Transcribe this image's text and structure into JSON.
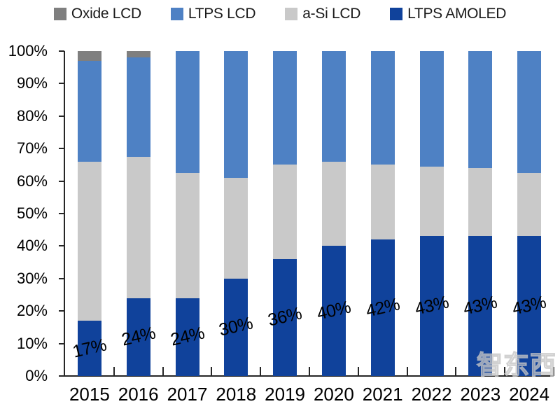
{
  "legend": {
    "items": [
      {
        "label": "Oxide LCD",
        "color": "#7f7f7f"
      },
      {
        "label": "LTPS LCD",
        "color": "#4e81c4"
      },
      {
        "label": "a-Si LCD",
        "color": "#c9c9c9"
      },
      {
        "label": "LTPS AMOLED",
        "color": "#10429b"
      }
    ]
  },
  "chart_data": {
    "type": "bar",
    "subtype": "stacked-100-percent-column",
    "title": "",
    "xlabel": "",
    "ylabel": "",
    "categories": [
      "2015",
      "2016",
      "2017",
      "2018",
      "2019",
      "2020",
      "2021",
      "2022",
      "2023",
      "2024"
    ],
    "series": [
      {
        "name": "LTPS AMOLED",
        "color": "#10429b",
        "values": [
          17,
          24,
          24,
          30,
          36,
          40,
          42,
          43,
          43,
          43
        ],
        "labels": [
          "17%",
          "24%",
          "24%",
          "30%",
          "36%",
          "40%",
          "42%",
          "43%",
          "43%",
          "43%"
        ]
      },
      {
        "name": "a-Si LCD",
        "color": "#c9c9c9",
        "values": [
          49,
          43.5,
          38.5,
          31,
          29,
          26,
          23,
          21.5,
          21,
          19.5
        ]
      },
      {
        "name": "LTPS LCD",
        "color": "#4e81c4",
        "values": [
          31,
          30.5,
          37.5,
          39,
          35,
          34,
          35,
          35.5,
          36,
          37.5
        ]
      },
      {
        "name": "Oxide LCD",
        "color": "#7f7f7f",
        "values": [
          3,
          2,
          0,
          0,
          0,
          0,
          0,
          0,
          0,
          0
        ]
      }
    ],
    "stack_order_bottom_to_top": [
      "LTPS AMOLED",
      "a-Si LCD",
      "LTPS LCD",
      "Oxide LCD"
    ],
    "ylim": [
      0,
      100
    ],
    "yticks": [
      "0%",
      "10%",
      "20%",
      "30%",
      "40%",
      "50%",
      "60%",
      "70%",
      "80%",
      "90%",
      "100%"
    ],
    "grid": false,
    "legend_position": "top",
    "data_label_rotation_deg": -13
  },
  "watermark": {
    "text": "智东西"
  }
}
